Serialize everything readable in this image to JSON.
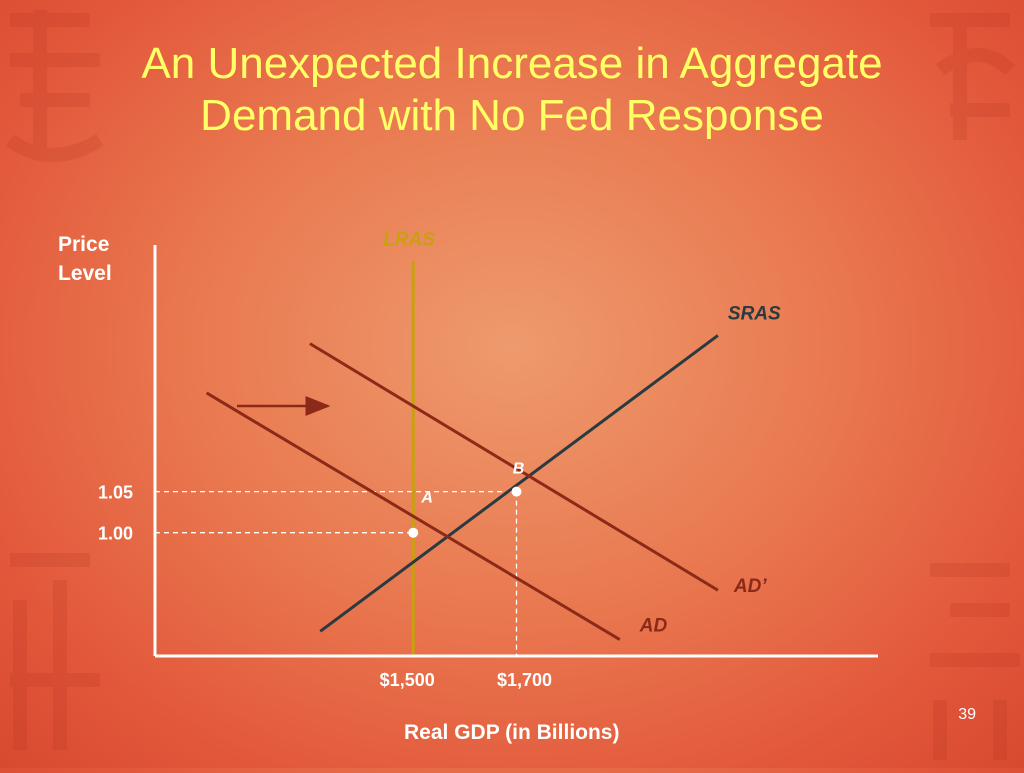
{
  "slide": {
    "title_line1": "An Unexpected Increase in Aggregate",
    "title_line2": "Demand with No Fed Response",
    "slide_number": "39"
  },
  "chart_data": {
    "type": "line",
    "ylabel_line1": "Price",
    "ylabel_line2": "Level",
    "xlabel": "Real GDP (in Billions)",
    "x_ticks": [
      {
        "value": 1500,
        "label": "$1,500"
      },
      {
        "value": 1700,
        "label": "$1,700"
      }
    ],
    "y_ticks": [
      {
        "value": 1.0,
        "label": "1.00"
      },
      {
        "value": 1.05,
        "label": "1.05"
      }
    ],
    "xlim": [
      1000,
      2400
    ],
    "ylim": [
      0.85,
      1.35
    ],
    "curves": [
      {
        "name": "LRAS",
        "color": "#c9a010",
        "points": [
          [
            1500,
            1.33
          ],
          [
            1500,
            0.85
          ]
        ]
      },
      {
        "name": "SRAS",
        "color": "#2b3a40",
        "points": [
          [
            1320,
            0.88
          ],
          [
            2090,
            1.24
          ]
        ]
      },
      {
        "name": "AD",
        "color": "#8b2a18",
        "points": [
          [
            1100,
            1.17
          ],
          [
            1900,
            0.87
          ]
        ]
      },
      {
        "name": "AD’",
        "color": "#8b2a18",
        "points": [
          [
            1300,
            1.23
          ],
          [
            2090,
            0.93
          ]
        ]
      }
    ],
    "points": [
      {
        "label": "A",
        "x": 1500,
        "y": 1.0
      },
      {
        "label": "B",
        "x": 1700,
        "y": 1.05
      }
    ],
    "annotation": "shift arrow right"
  }
}
